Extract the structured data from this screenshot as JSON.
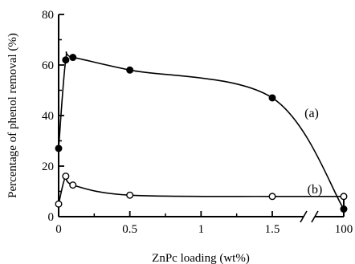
{
  "chart_data": {
    "type": "line",
    "title": "",
    "xlabel": "ZnPc loading (wt%)",
    "ylabel": "Percentage of phenol removal (%)",
    "ylim": [
      0,
      80
    ],
    "axis_break": "between 1.5 and 100",
    "x_tick_labels": [
      "0",
      "0.5",
      "1",
      "1.5",
      "100"
    ],
    "y_tick_labels": [
      "0",
      "20",
      "40",
      "60",
      "80"
    ],
    "grid": false,
    "series": [
      {
        "name": "(a)",
        "marker": "filled-circle",
        "points": [
          {
            "x": 0,
            "y": 27
          },
          {
            "x": 0.05,
            "y": 62
          },
          {
            "x": 0.1,
            "y": 63
          },
          {
            "x": 0.5,
            "y": 58
          },
          {
            "x": 1.5,
            "y": 47
          },
          {
            "x": 100,
            "y": 3
          }
        ]
      },
      {
        "name": "(b)",
        "marker": "open-circle",
        "points": [
          {
            "x": 0,
            "y": 5
          },
          {
            "x": 0.05,
            "y": 16
          },
          {
            "x": 0.1,
            "y": 12.5
          },
          {
            "x": 0.5,
            "y": 8.5
          },
          {
            "x": 1.5,
            "y": 8
          },
          {
            "x": 100,
            "y": 8
          }
        ]
      }
    ]
  }
}
